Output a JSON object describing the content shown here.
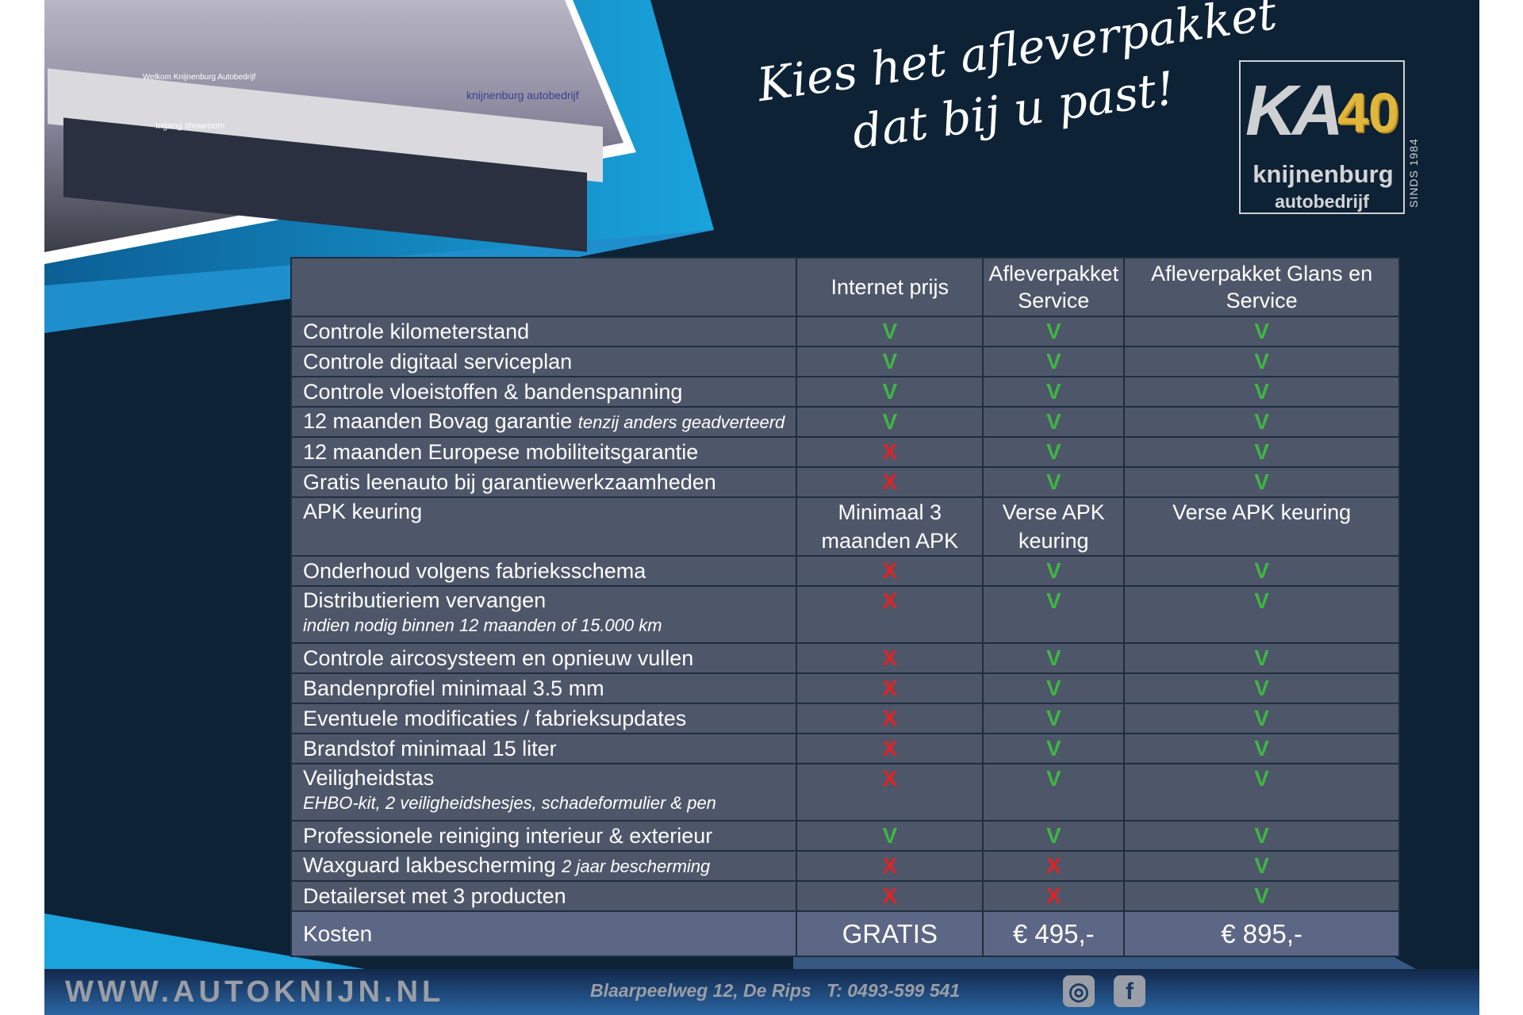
{
  "slogan": {
    "line1": "Kies het afleverpakket",
    "line2": "dat bij u past!"
  },
  "logo": {
    "mark": "KA",
    "anniversary": "40",
    "brand": "knijnenburg",
    "sub": "autobedrijf",
    "since": "SINDS 1984"
  },
  "colors": {
    "background": "#0e2236",
    "table": "#4e5669",
    "check": "#3fb544",
    "cross": "#e22323",
    "accent": "#1aa3dc"
  },
  "table": {
    "headers": [
      "",
      "Internet prijs",
      "Afleverpakket Service",
      "Afleverpakket Glans en Service"
    ],
    "rows": [
      {
        "label": "Controle kilometerstand",
        "values": [
          "V",
          "V",
          "V"
        ],
        "types": [
          "v",
          "v",
          "v"
        ]
      },
      {
        "label": "Controle digitaal serviceplan",
        "values": [
          "V",
          "V",
          "V"
        ],
        "types": [
          "v",
          "v",
          "v"
        ]
      },
      {
        "label": "Controle vloeistoffen & bandenspanning",
        "values": [
          "V",
          "V",
          "V"
        ],
        "types": [
          "v",
          "v",
          "v"
        ]
      },
      {
        "label": "12 maanden Bovag garantie",
        "note": "tenzij anders geadverteerd",
        "values": [
          "V",
          "V",
          "V"
        ],
        "types": [
          "v",
          "v",
          "v"
        ]
      },
      {
        "label": "12 maanden Europese mobiliteitsgarantie",
        "values": [
          "X",
          "V",
          "V"
        ],
        "types": [
          "x",
          "v",
          "v"
        ]
      },
      {
        "label": "Gratis leenauto bij garantiewerkzaamheden",
        "values": [
          "X",
          "V",
          "V"
        ],
        "types": [
          "x",
          "v",
          "v"
        ]
      },
      {
        "label": "APK keuring",
        "values": [
          "Minimaal 3 maanden APK",
          "Verse APK keuring",
          "Verse APK keuring"
        ],
        "types": [
          "t",
          "t",
          "t"
        ]
      },
      {
        "label": "Onderhoud volgens fabrieksschema",
        "values": [
          "X",
          "V",
          "V"
        ],
        "types": [
          "x",
          "v",
          "v"
        ]
      },
      {
        "label": "Distributieriem vervangen",
        "subnote": "indien nodig binnen 12 maanden of 15.000 km",
        "values": [
          "X",
          "V",
          "V"
        ],
        "types": [
          "x",
          "v",
          "v"
        ]
      },
      {
        "label": "Controle aircosysteem en opnieuw vullen",
        "values": [
          "X",
          "V",
          "V"
        ],
        "types": [
          "x",
          "v",
          "v"
        ]
      },
      {
        "label": "Bandenprofiel minimaal 3.5 mm",
        "values": [
          "X",
          "V",
          "V"
        ],
        "types": [
          "x",
          "v",
          "v"
        ]
      },
      {
        "label": "Eventuele modificaties / fabrieksupdates",
        "values": [
          "X",
          "V",
          "V"
        ],
        "types": [
          "x",
          "v",
          "v"
        ]
      },
      {
        "label": "Brandstof minimaal 15 liter",
        "values": [
          "X",
          "V",
          "V"
        ],
        "types": [
          "x",
          "v",
          "v"
        ]
      },
      {
        "label": "Veiligheidstas",
        "subnote": "EHBO-kit, 2 veiligheidshesjes, schadeformulier & pen",
        "values": [
          "X",
          "V",
          "V"
        ],
        "types": [
          "x",
          "v",
          "v"
        ]
      },
      {
        "label": "Professionele reiniging interieur & exterieur",
        "values": [
          "V",
          "V",
          "V"
        ],
        "types": [
          "v",
          "v",
          "v"
        ]
      },
      {
        "label": "Waxguard lakbescherming",
        "note": "2 jaar bescherming",
        "values": [
          "X",
          "X",
          "V"
        ],
        "types": [
          "x",
          "x",
          "v"
        ]
      },
      {
        "label": "Detailerset met 3 producten",
        "values": [
          "X",
          "X",
          "V"
        ],
        "types": [
          "x",
          "x",
          "v"
        ]
      }
    ],
    "cost": {
      "label": "Kosten",
      "values": [
        "GRATIS",
        "€ 495,-",
        "€ 895,-"
      ]
    }
  },
  "footer": {
    "url": "WWW.AUTOKNIJN.NL",
    "address": "Blaarpeelweg 12, De Rips   T: 0493-599 541",
    "icons": [
      "instagram-icon",
      "facebook-icon"
    ]
  }
}
